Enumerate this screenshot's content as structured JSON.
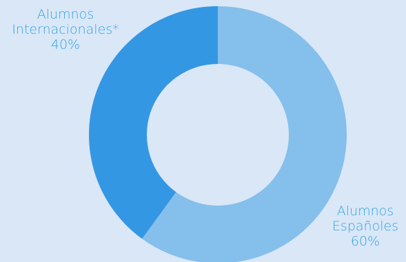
{
  "chart_data": {
    "type": "pie",
    "variant": "donut",
    "categories": [
      "Alumnos Internacionales*",
      "Alumnos Españoles"
    ],
    "values": [
      40,
      60
    ],
    "unit": "%",
    "colors": [
      "#3497e3",
      "#85bfec"
    ],
    "background_color": "#d9e7f7",
    "label_color": "#35a3e4",
    "labels": [
      {
        "name": "intl",
        "lines": [
          "Alumnos",
          "Internacionales*",
          "40%"
        ]
      },
      {
        "name": "esp",
        "lines": [
          "Alumnos",
          "Españoles",
          "60%"
        ]
      }
    ],
    "title": ""
  }
}
